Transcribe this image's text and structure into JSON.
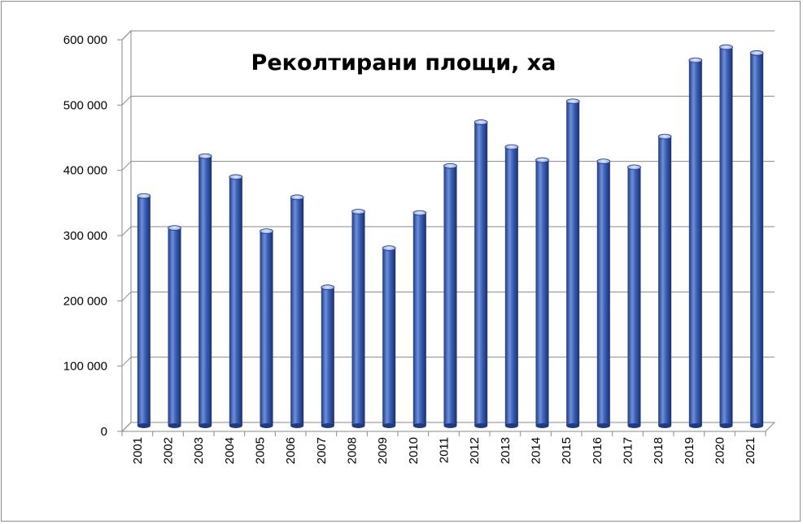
{
  "chart_data": {
    "type": "bar",
    "title": "Реколтирани площи, ха",
    "xlabel": "",
    "ylabel": "",
    "categories": [
      "2001",
      "2002",
      "2003",
      "2004",
      "2005",
      "2006",
      "2007",
      "2008",
      "2009",
      "2010",
      "2011",
      "2012",
      "2013",
      "2014",
      "2015",
      "2016",
      "2017",
      "2018",
      "2019",
      "2020",
      "2021"
    ],
    "values": [
      352000,
      303000,
      413000,
      381000,
      298000,
      350000,
      212000,
      328000,
      272000,
      326000,
      398000,
      465000,
      427000,
      407000,
      497000,
      405000,
      396000,
      443000,
      560000,
      580000,
      571000
    ],
    "ylim": [
      0,
      600000
    ],
    "yticks": [
      0,
      100000,
      200000,
      300000,
      400000,
      500000,
      600000
    ],
    "ytick_labels": [
      "0",
      "100 000",
      "200 000",
      "300 000",
      "400 000",
      "500 000",
      "600 000"
    ],
    "grid": true,
    "legend": "none",
    "colors": {
      "bar": "#3b5fb5",
      "bar_dark": "#1f3a80",
      "bar_light": "#7d9be0",
      "grid": "#8a8a8a",
      "wall": "#ffffff"
    }
  }
}
